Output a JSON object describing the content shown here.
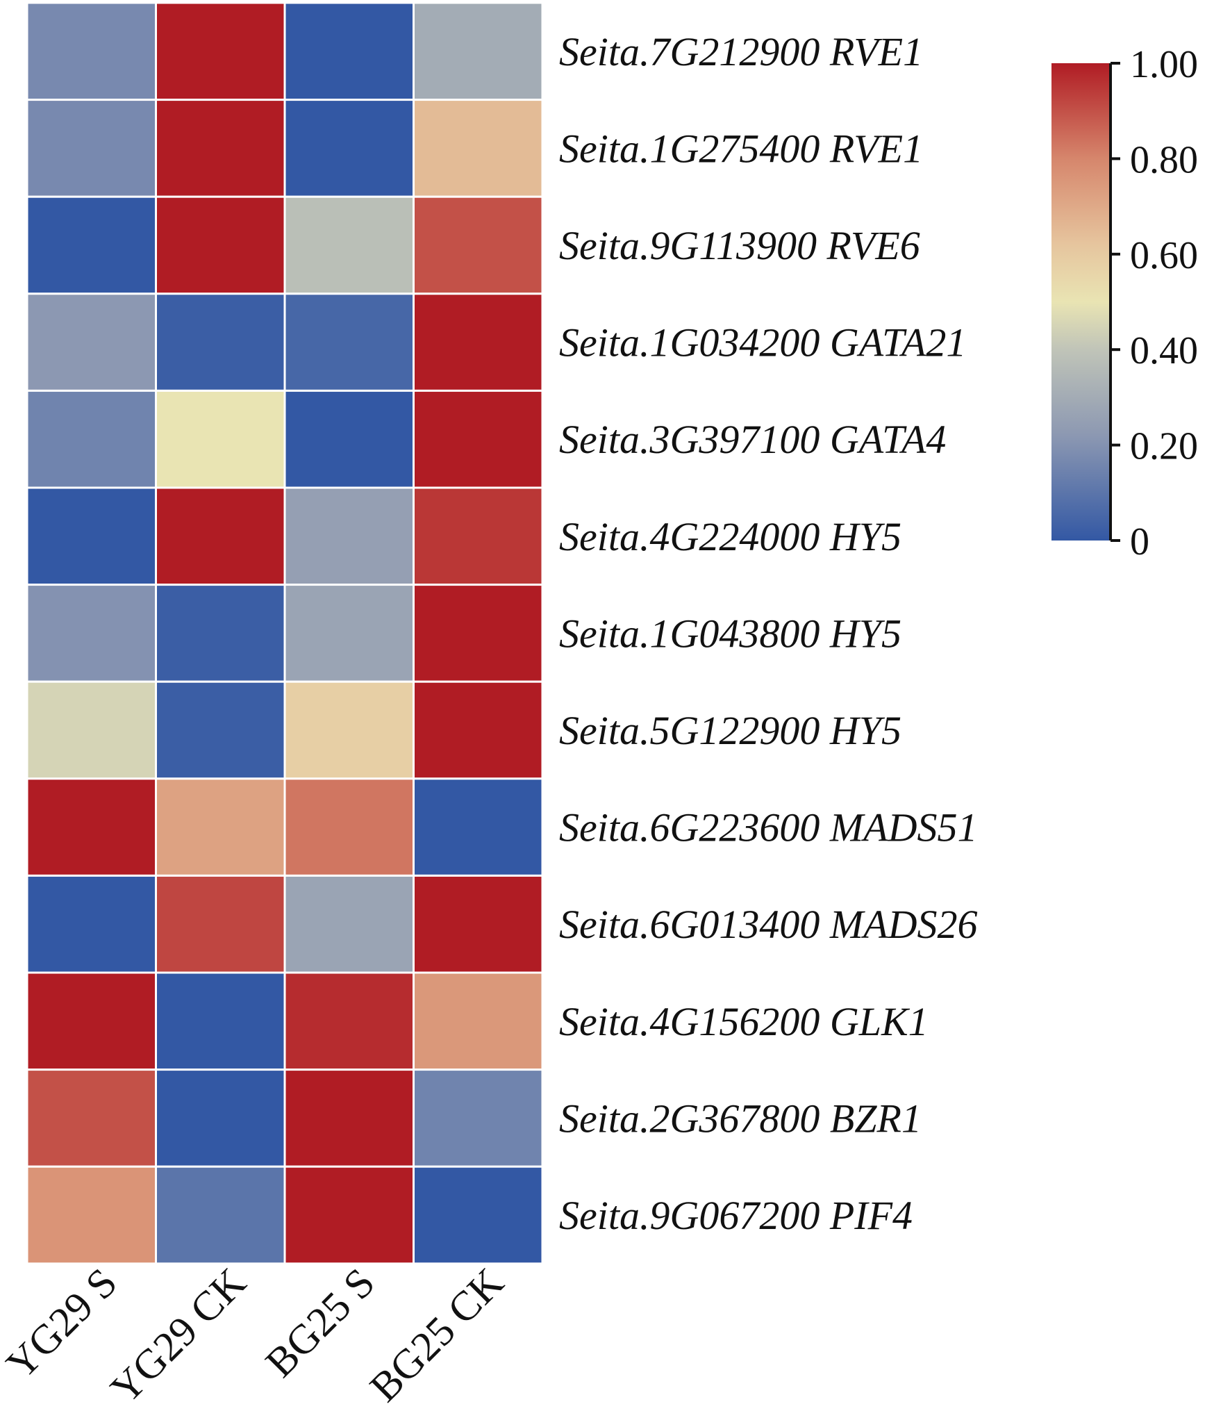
{
  "chart_data": {
    "type": "heatmap",
    "title": "",
    "columns": [
      "YG29 S",
      "YG29 CK",
      "BG25 S",
      "BG25 CK"
    ],
    "rows": [
      "Seita.7G212900 RVE1",
      "Seita.1G275400 RVE1",
      "Seita.9G113900 RVE6",
      "Seita.1G034200 GATA21",
      "Seita.3G397100 GATA4",
      "Seita.4G224000 HY5",
      "Seita.1G043800 HY5",
      "Seita.5G122900 HY5",
      "Seita.6G223600 MADS51",
      "Seita.6G013400 MADS26",
      "Seita.4G156200 GLK1",
      "Seita.2G367800 BZR1",
      "Seita.9G067200 PIF4"
    ],
    "values": [
      [
        0.17,
        1.0,
        0.0,
        0.3
      ],
      [
        0.17,
        1.0,
        0.0,
        0.65
      ],
      [
        0.0,
        1.0,
        0.38,
        0.9
      ],
      [
        0.22,
        0.02,
        0.05,
        1.0
      ],
      [
        0.15,
        0.5,
        0.0,
        1.0
      ],
      [
        0.0,
        1.0,
        0.25,
        0.95
      ],
      [
        0.2,
        0.02,
        0.27,
        1.0
      ],
      [
        0.45,
        0.02,
        0.58,
        1.0
      ],
      [
        1.0,
        0.72,
        0.83,
        0.0
      ],
      [
        0.0,
        0.92,
        0.27,
        1.0
      ],
      [
        1.0,
        0.0,
        0.97,
        0.75
      ],
      [
        0.9,
        0.0,
        1.0,
        0.15
      ],
      [
        0.76,
        0.1,
        1.0,
        0.0
      ]
    ],
    "colorbar": {
      "range": [
        0,
        1
      ],
      "ticks": [
        "1.00",
        "0.80",
        "0.60",
        "0.40",
        "0.20",
        "0"
      ],
      "tick_values": [
        1.0,
        0.8,
        0.6,
        0.4,
        0.2,
        0.0
      ],
      "stops": [
        {
          "v": 0.0,
          "c": "#3358a4"
        },
        {
          "v": 0.22,
          "c": "#8c98b2"
        },
        {
          "v": 0.4,
          "c": "#c0c4b8"
        },
        {
          "v": 0.5,
          "c": "#e9e4b3"
        },
        {
          "v": 0.62,
          "c": "#e6c59e"
        },
        {
          "v": 0.8,
          "c": "#d6866c"
        },
        {
          "v": 1.0,
          "c": "#b01c24"
        }
      ]
    }
  }
}
